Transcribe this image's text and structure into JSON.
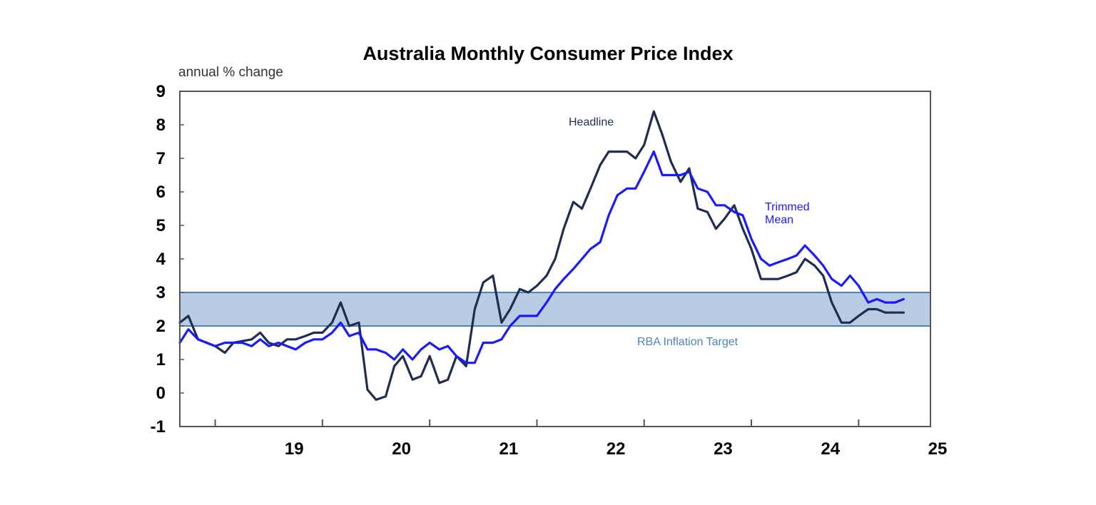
{
  "chart_data": {
    "type": "line",
    "title": "Australia Monthly Consumer Price Index",
    "ylabel": "annual % change",
    "xlabel": "",
    "ylim": [
      -1,
      9
    ],
    "yticks": [
      "9",
      "8",
      "7",
      "6",
      "5",
      "4",
      "3",
      "2",
      "1",
      "0",
      "-1"
    ],
    "xlim": [
      2018.0,
      2025.0
    ],
    "xticks": [
      {
        "label": "19",
        "pos": 2019.0
      },
      {
        "label": "20",
        "pos": 2020.0
      },
      {
        "label": "21",
        "pos": 2021.0
      },
      {
        "label": "22",
        "pos": 2022.0
      },
      {
        "label": "23",
        "pos": 2023.0
      },
      {
        "label": "24",
        "pos": 2024.0
      },
      {
        "label": "25",
        "pos": 2025.0
      }
    ],
    "year_dividers": [
      2018.33,
      2019.33,
      2020.33,
      2021.33,
      2022.33,
      2023.33,
      2024.33
    ],
    "band": {
      "label": "RBA Inflation Target",
      "low": 2,
      "high": 3,
      "color": "#b8cce4",
      "edge_color": "#4f81bd"
    },
    "series": [
      {
        "name": "Headline",
        "color": "#1f2d50",
        "points": [
          [
            2018.0,
            2.1
          ],
          [
            2018.08,
            2.3
          ],
          [
            2018.17,
            1.6
          ],
          [
            2018.33,
            1.4
          ],
          [
            2018.42,
            1.2
          ],
          [
            2018.5,
            1.5
          ],
          [
            2018.67,
            1.6
          ],
          [
            2018.75,
            1.8
          ],
          [
            2018.83,
            1.5
          ],
          [
            2018.92,
            1.4
          ],
          [
            2019.0,
            1.6
          ],
          [
            2019.08,
            1.6
          ],
          [
            2019.17,
            1.7
          ],
          [
            2019.25,
            1.8
          ],
          [
            2019.33,
            1.8
          ],
          [
            2019.42,
            2.1
          ],
          [
            2019.5,
            2.7
          ],
          [
            2019.58,
            2.0
          ],
          [
            2019.67,
            2.1
          ],
          [
            2019.75,
            0.1
          ],
          [
            2019.83,
            -0.2
          ],
          [
            2019.92,
            -0.1
          ],
          [
            2020.0,
            0.8
          ],
          [
            2020.08,
            1.1
          ],
          [
            2020.17,
            0.4
          ],
          [
            2020.25,
            0.5
          ],
          [
            2020.33,
            1.1
          ],
          [
            2020.42,
            0.3
          ],
          [
            2020.5,
            0.4
          ],
          [
            2020.58,
            1.1
          ],
          [
            2020.67,
            0.8
          ],
          [
            2020.75,
            2.5
          ],
          [
            2020.83,
            3.3
          ],
          [
            2020.92,
            3.5
          ],
          [
            2021.0,
            2.1
          ],
          [
            2021.08,
            2.5
          ],
          [
            2021.17,
            3.1
          ],
          [
            2021.25,
            3.0
          ],
          [
            2021.33,
            3.2
          ],
          [
            2021.42,
            3.5
          ],
          [
            2021.5,
            4.0
          ],
          [
            2021.58,
            4.9
          ],
          [
            2021.67,
            5.7
          ],
          [
            2021.75,
            5.5
          ],
          [
            2021.83,
            6.1
          ],
          [
            2021.92,
            6.8
          ],
          [
            2022.0,
            7.2
          ],
          [
            2022.08,
            7.2
          ],
          [
            2022.17,
            7.2
          ],
          [
            2022.25,
            7.0
          ],
          [
            2022.33,
            7.4
          ],
          [
            2022.42,
            8.4
          ],
          [
            2022.5,
            7.7
          ],
          [
            2022.58,
            6.9
          ],
          [
            2022.67,
            6.3
          ],
          [
            2022.75,
            6.7
          ],
          [
            2022.83,
            5.5
          ],
          [
            2022.92,
            5.4
          ],
          [
            2023.0,
            4.9
          ],
          [
            2023.08,
            5.2
          ],
          [
            2023.17,
            5.6
          ],
          [
            2023.25,
            4.9
          ],
          [
            2023.33,
            4.3
          ],
          [
            2023.42,
            3.4
          ],
          [
            2023.5,
            3.4
          ],
          [
            2023.58,
            3.4
          ],
          [
            2023.67,
            3.5
          ],
          [
            2023.75,
            3.6
          ],
          [
            2023.83,
            4.0
          ],
          [
            2023.92,
            3.8
          ],
          [
            2024.0,
            3.5
          ],
          [
            2024.08,
            2.7
          ],
          [
            2024.17,
            2.1
          ],
          [
            2024.25,
            2.1
          ],
          [
            2024.33,
            2.3
          ],
          [
            2024.42,
            2.5
          ],
          [
            2024.5,
            2.5
          ],
          [
            2024.58,
            2.4
          ],
          [
            2024.67,
            2.4
          ],
          [
            2024.75,
            2.4
          ]
        ]
      },
      {
        "name": "Trimmed Mean",
        "color": "#1a1aff",
        "points": [
          [
            2018.0,
            1.5
          ],
          [
            2018.08,
            1.9
          ],
          [
            2018.17,
            1.6
          ],
          [
            2018.25,
            1.5
          ],
          [
            2018.33,
            1.4
          ],
          [
            2018.42,
            1.5
          ],
          [
            2018.5,
            1.5
          ],
          [
            2018.58,
            1.5
          ],
          [
            2018.67,
            1.4
          ],
          [
            2018.75,
            1.6
          ],
          [
            2018.83,
            1.4
          ],
          [
            2018.92,
            1.5
          ],
          [
            2019.0,
            1.4
          ],
          [
            2019.08,
            1.3
          ],
          [
            2019.17,
            1.5
          ],
          [
            2019.25,
            1.6
          ],
          [
            2019.33,
            1.6
          ],
          [
            2019.42,
            1.8
          ],
          [
            2019.5,
            2.1
          ],
          [
            2019.58,
            1.7
          ],
          [
            2019.67,
            1.8
          ],
          [
            2019.75,
            1.3
          ],
          [
            2019.83,
            1.3
          ],
          [
            2019.92,
            1.2
          ],
          [
            2020.0,
            1.0
          ],
          [
            2020.08,
            1.3
          ],
          [
            2020.17,
            1.0
          ],
          [
            2020.25,
            1.3
          ],
          [
            2020.33,
            1.5
          ],
          [
            2020.42,
            1.3
          ],
          [
            2020.5,
            1.4
          ],
          [
            2020.58,
            1.1
          ],
          [
            2020.67,
            0.9
          ],
          [
            2020.75,
            0.9
          ],
          [
            2020.83,
            1.5
          ],
          [
            2020.92,
            1.5
          ],
          [
            2021.0,
            1.6
          ],
          [
            2021.08,
            2.0
          ],
          [
            2021.17,
            2.3
          ],
          [
            2021.25,
            2.3
          ],
          [
            2021.33,
            2.3
          ],
          [
            2021.42,
            2.7
          ],
          [
            2021.5,
            3.1
          ],
          [
            2021.58,
            3.4
          ],
          [
            2021.67,
            3.7
          ],
          [
            2021.75,
            4.0
          ],
          [
            2021.83,
            4.3
          ],
          [
            2021.92,
            4.5
          ],
          [
            2022.0,
            5.3
          ],
          [
            2022.08,
            5.9
          ],
          [
            2022.17,
            6.1
          ],
          [
            2022.25,
            6.1
          ],
          [
            2022.33,
            6.6
          ],
          [
            2022.42,
            7.2
          ],
          [
            2022.5,
            6.5
          ],
          [
            2022.58,
            6.5
          ],
          [
            2022.67,
            6.5
          ],
          [
            2022.75,
            6.6
          ],
          [
            2022.83,
            6.1
          ],
          [
            2022.92,
            6.0
          ],
          [
            2023.0,
            5.6
          ],
          [
            2023.08,
            5.6
          ],
          [
            2023.17,
            5.4
          ],
          [
            2023.25,
            5.3
          ],
          [
            2023.33,
            4.6
          ],
          [
            2023.42,
            4.0
          ],
          [
            2023.5,
            3.8
          ],
          [
            2023.58,
            3.9
          ],
          [
            2023.67,
            4.0
          ],
          [
            2023.75,
            4.1
          ],
          [
            2023.83,
            4.4
          ],
          [
            2023.92,
            4.1
          ],
          [
            2024.0,
            3.8
          ],
          [
            2024.08,
            3.4
          ],
          [
            2024.17,
            3.2
          ],
          [
            2024.25,
            3.5
          ],
          [
            2024.33,
            3.2
          ],
          [
            2024.42,
            2.7
          ],
          [
            2024.5,
            2.8
          ],
          [
            2024.58,
            2.7
          ],
          [
            2024.67,
            2.7
          ],
          [
            2024.75,
            2.8
          ]
        ]
      }
    ],
    "annotations": {
      "headline_label": "Headline",
      "trimmed_label_line1": "Trimmed",
      "trimmed_label_line2": "Mean",
      "band_label": "RBA Inflation Target"
    }
  }
}
